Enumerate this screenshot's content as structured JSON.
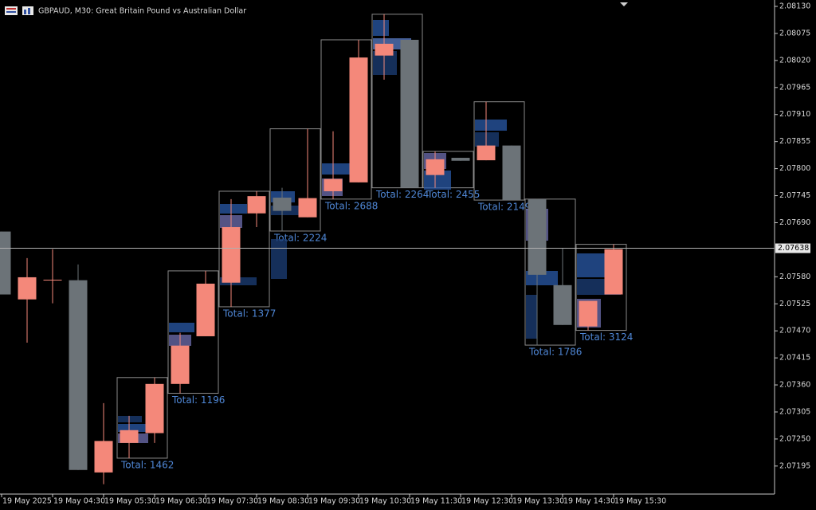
{
  "chart_data": {
    "type": "candlestick",
    "title": "GBPAUD, M30:  Great Britain Pound vs Australian Dollar",
    "x": [
      "19 May 2025",
      null,
      "19 May 04:30",
      null,
      "19 May 05:30",
      null,
      "19 May 06:30",
      null,
      "19 May 07:30",
      null,
      "19 May 08:30",
      null,
      "19 May 09:30",
      null,
      "19 May 10:30",
      null,
      "19 May 11:30",
      null,
      "19 May 12:30",
      null,
      "19 May 13:30",
      null,
      "19 May 14:30",
      null,
      "19 May 15:30"
    ],
    "open": [
      2.07672,
      2.07534,
      2.07574,
      2.07573,
      2.07182,
      2.07242,
      2.07262,
      2.07362,
      2.07459,
      2.07568,
      2.07709,
      2.07741,
      2.07701,
      2.07754,
      2.07772,
      2.0803,
      2.08062,
      2.07787,
      2.07822,
      2.07817,
      2.07847,
      2.07738,
      2.07563,
      2.07479,
      2.07544
    ],
    "high": [
      2.07672,
      2.07618,
      2.07636,
      2.07605,
      2.07323,
      2.07297,
      2.07375,
      2.07466,
      2.07592,
      2.07738,
      2.07754,
      2.07761,
      2.07881,
      2.07876,
      2.08062,
      2.08114,
      2.08062,
      2.07835,
      2.07822,
      2.07936,
      2.07847,
      2.07738,
      2.07638,
      2.07531,
      2.07646
    ],
    "low": [
      2.07544,
      2.07446,
      2.07526,
      2.07187,
      2.07158,
      2.07211,
      2.07242,
      2.07343,
      2.07459,
      2.07519,
      2.07681,
      2.07673,
      2.07701,
      2.07738,
      2.07772,
      2.07981,
      2.07761,
      2.07761,
      2.07816,
      2.07817,
      2.07736,
      2.07441,
      2.07482,
      2.07471,
      2.07544
    ],
    "close": [
      2.07544,
      2.07579,
      2.07574,
      2.07187,
      2.07246,
      2.07268,
      2.07362,
      2.0744,
      2.07566,
      2.07681,
      2.07744,
      2.07714,
      2.0774,
      2.07779,
      2.08026,
      2.08054,
      2.07761,
      2.07819,
      2.07816,
      2.07847,
      2.07736,
      2.07584,
      2.07482,
      2.07531,
      2.07636
    ],
    "up_color": "#f4887a",
    "down_color": "#6c7378",
    "profile_labels": [
      "Total: 1462",
      "Total: 1196",
      "Total: 1377",
      "Total: 2224",
      "Total: 2688",
      "Total: 2264",
      "Total: 2455",
      "Total: 2149",
      "Total: 1786",
      "Total: 3124"
    ],
    "current_price": 2.07638,
    "ylim": [
      2.07138,
      2.08143
    ],
    "yticks": [
      {
        "value": 2.0813,
        "label": "2.08130"
      },
      2.08075,
      {
        "value": 2.0802,
        "label": "2.08020"
      },
      2.07965,
      {
        "value": 2.0791,
        "label": "2.07910"
      },
      2.07855,
      {
        "value": 2.078,
        "label": "2.07800"
      },
      2.07745,
      {
        "value": 2.0769,
        "label": "2.07690"
      },
      {
        "value": 2.0758,
        "label": "2.07580"
      },
      2.07525,
      {
        "value": 2.0747,
        "label": "2.07470"
      },
      2.07415,
      {
        "value": 2.0736,
        "label": "2.07360"
      },
      2.07305,
      {
        "value": 2.0725,
        "label": "2.07250"
      },
      2.07195
    ]
  }
}
